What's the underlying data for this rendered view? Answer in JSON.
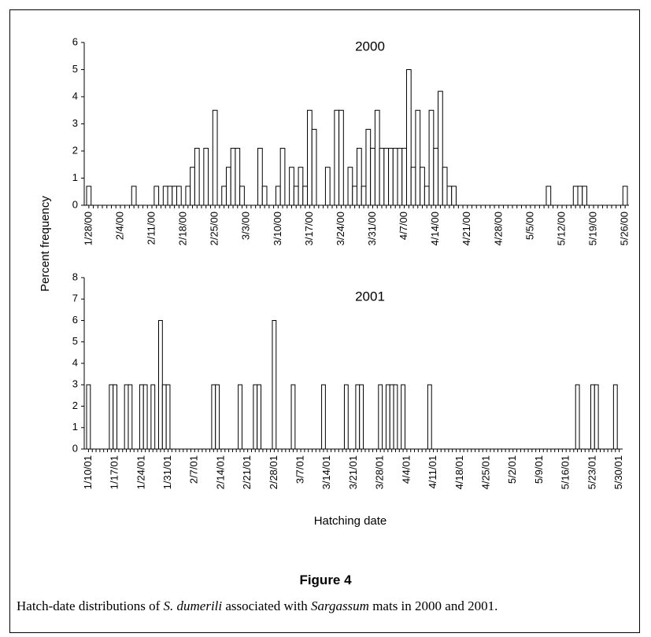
{
  "figure": {
    "ylabel": "Percent frequency",
    "xlabel": "Hatching date",
    "label": "Figure 4",
    "caption": [
      {
        "text": "Hatch-date distributions of ",
        "italic": false
      },
      {
        "text": "S. dumerili",
        "italic": true
      },
      {
        "text": " associated with ",
        "italic": false
      },
      {
        "text": "Sargassum",
        "italic": true
      },
      {
        "text": " mats in 2000 and 2001.",
        "italic": false
      }
    ]
  },
  "chart_data": [
    {
      "type": "bar",
      "title": "2000",
      "color": "#ffffff",
      "ylim": [
        0,
        6
      ],
      "yticks": [
        0,
        1,
        2,
        3,
        4,
        5,
        6
      ],
      "categories": [
        "1/28/00",
        null,
        null,
        null,
        null,
        null,
        null,
        "2/4/00",
        null,
        null,
        null,
        null,
        null,
        null,
        "2/11/00",
        null,
        null,
        null,
        null,
        null,
        null,
        "2/18/00",
        null,
        null,
        null,
        null,
        null,
        null,
        "2/25/00",
        null,
        null,
        null,
        null,
        null,
        null,
        "3/3/00",
        null,
        null,
        null,
        null,
        null,
        null,
        "3/10/00",
        null,
        null,
        null,
        null,
        null,
        null,
        "3/17/00",
        null,
        null,
        null,
        null,
        null,
        null,
        "3/24/00",
        null,
        null,
        null,
        null,
        null,
        null,
        "3/31/00",
        null,
        null,
        null,
        null,
        null,
        null,
        "4/7/00",
        null,
        null,
        null,
        null,
        null,
        null,
        "4/14/00",
        null,
        null,
        null,
        null,
        null,
        null,
        "4/21/00",
        null,
        null,
        null,
        null,
        null,
        null,
        "4/28/00",
        null,
        null,
        null,
        null,
        null,
        null,
        "5/5/00",
        null,
        null,
        null,
        null,
        null,
        null,
        "5/12/00",
        null,
        null,
        null,
        null,
        null,
        null,
        "5/19/00",
        null,
        null,
        null,
        null,
        null,
        null,
        "5/26/00"
      ],
      "values": [
        0.7,
        0,
        0,
        0,
        0,
        0,
        0,
        0,
        0,
        0,
        0.7,
        0,
        0,
        0,
        0,
        0.7,
        0,
        0.7,
        0.7,
        0.7,
        0.7,
        0,
        0.7,
        1.4,
        2.1,
        0,
        2.1,
        0,
        3.5,
        0,
        0.7,
        1.4,
        2.1,
        2.1,
        0.7,
        0,
        0,
        0,
        2.1,
        0.7,
        0,
        0,
        0.7,
        2.1,
        0,
        1.4,
        0.7,
        1.4,
        0.7,
        3.5,
        2.8,
        0,
        0,
        1.4,
        0,
        3.5,
        3.5,
        0,
        1.4,
        0.7,
        2.1,
        0.7,
        2.8,
        2.1,
        3.5,
        2.1,
        2.1,
        2.1,
        2.1,
        2.1,
        2.1,
        5.0,
        1.4,
        3.5,
        1.4,
        0.7,
        3.5,
        2.1,
        4.2,
        1.4,
        0.7,
        0.7,
        0,
        0,
        0,
        0,
        0,
        0,
        0,
        0,
        0,
        0,
        0,
        0,
        0,
        0,
        0,
        0,
        0,
        0,
        0,
        0,
        0.7,
        0,
        0,
        0,
        0,
        0,
        0.7,
        0.7,
        0.7,
        0,
        0,
        0,
        0,
        0,
        0,
        0,
        0,
        0.7
      ]
    },
    {
      "type": "bar",
      "title": "2001",
      "color": "#ffffff",
      "ylim": [
        0,
        8
      ],
      "yticks": [
        0,
        1,
        2,
        3,
        4,
        5,
        6,
        7,
        8
      ],
      "categories": [
        "1/10/01",
        null,
        null,
        null,
        null,
        null,
        null,
        "1/17/01",
        null,
        null,
        null,
        null,
        null,
        null,
        "1/24/01",
        null,
        null,
        null,
        null,
        null,
        null,
        "1/31/01",
        null,
        null,
        null,
        null,
        null,
        null,
        "2/7/01",
        null,
        null,
        null,
        null,
        null,
        null,
        "2/14/01",
        null,
        null,
        null,
        null,
        null,
        null,
        "2/21/01",
        null,
        null,
        null,
        null,
        null,
        null,
        "2/28/01",
        null,
        null,
        null,
        null,
        null,
        null,
        "3/7/01",
        null,
        null,
        null,
        null,
        null,
        null,
        "3/14/01",
        null,
        null,
        null,
        null,
        null,
        null,
        "3/21/01",
        null,
        null,
        null,
        null,
        null,
        null,
        "3/28/01",
        null,
        null,
        null,
        null,
        null,
        null,
        "4/4/01",
        null,
        null,
        null,
        null,
        null,
        null,
        "4/11/01",
        null,
        null,
        null,
        null,
        null,
        null,
        "4/18/01",
        null,
        null,
        null,
        null,
        null,
        null,
        "4/25/01",
        null,
        null,
        null,
        null,
        null,
        null,
        "5/2/01",
        null,
        null,
        null,
        null,
        null,
        null,
        "5/9/01",
        null,
        null,
        null,
        null,
        null,
        null,
        "5/16/01",
        null,
        null,
        null,
        null,
        null,
        null,
        "5/23/01",
        null,
        null,
        null,
        null,
        null,
        null,
        "5/30/01"
      ],
      "values": [
        3,
        0,
        0,
        0,
        0,
        0,
        3,
        3,
        0,
        0,
        3,
        3,
        0,
        0,
        3,
        3,
        0,
        3,
        0,
        6,
        3,
        3,
        0,
        0,
        0,
        0,
        0,
        0,
        0,
        0,
        0,
        0,
        0,
        3,
        3,
        0,
        0,
        0,
        0,
        0,
        3,
        0,
        0,
        0,
        3,
        3,
        0,
        0,
        0,
        6,
        0,
        0,
        0,
        0,
        3,
        0,
        0,
        0,
        0,
        0,
        0,
        0,
        3,
        0,
        0,
        0,
        0,
        0,
        3,
        0,
        0,
        3,
        3,
        0,
        0,
        0,
        0,
        3,
        0,
        3,
        3,
        3,
        0,
        3,
        0,
        0,
        0,
        0,
        0,
        0,
        3,
        0,
        0,
        0,
        0,
        0,
        0,
        0,
        0,
        0,
        0,
        0,
        0,
        0,
        0,
        0,
        0,
        0,
        0,
        0,
        0,
        0,
        0,
        0,
        0,
        0,
        0,
        0,
        0,
        0,
        0,
        0,
        0,
        0,
        0,
        0,
        0,
        0,
        0,
        3,
        0,
        0,
        0,
        3,
        3,
        0,
        0,
        0,
        0,
        3,
        0
      ]
    }
  ]
}
